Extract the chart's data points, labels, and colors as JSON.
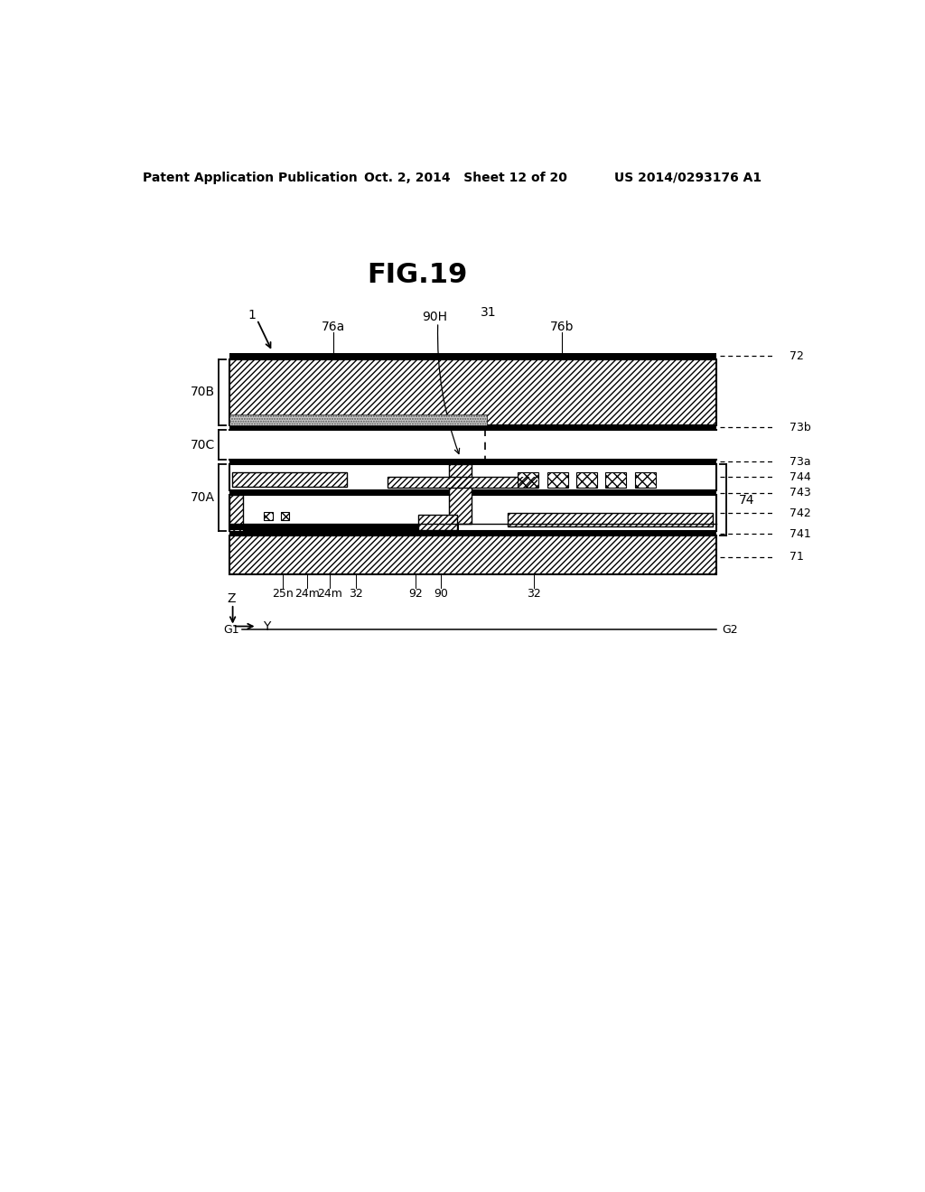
{
  "title": "FIG.19",
  "header_left": "Patent Application Publication",
  "header_mid": "Oct. 2, 2014   Sheet 12 of 20",
  "header_right": "US 2014/0293176 A1",
  "bg_color": "#ffffff",
  "text_color": "#000000"
}
